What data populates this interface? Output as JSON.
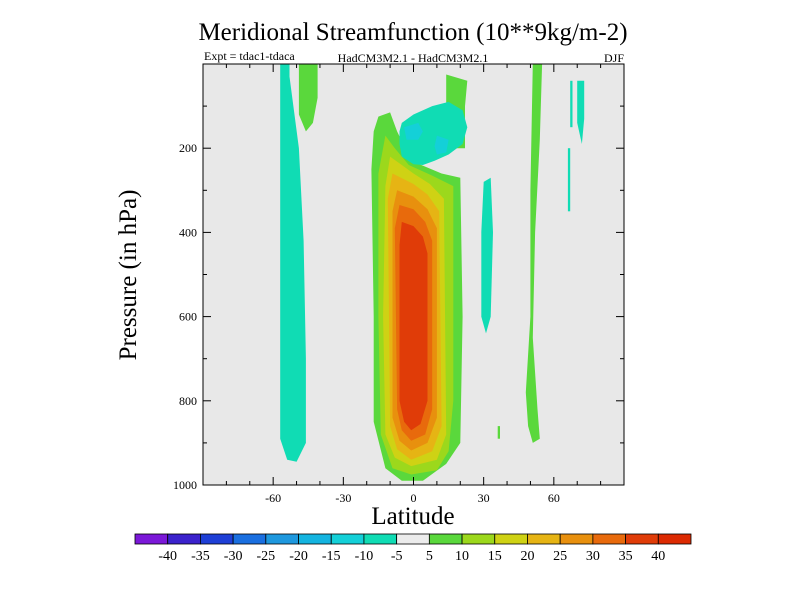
{
  "chart_data": {
    "type": "contour",
    "title": "Meridional Streamfunction (10**9kg/m-2)",
    "subtitle_left": "Expt = tdac1-tdaca",
    "subtitle_center": "HadCM3M2.1 - HadCM3M2.1",
    "subtitle_right": "DJF",
    "xlabel": "Latitude",
    "ylabel": "Pressure (in hPa)",
    "xlim": [
      -90,
      90
    ],
    "ylim": [
      1000,
      0
    ],
    "xticks": [
      -60,
      -30,
      0,
      30,
      60
    ],
    "yticks": [
      200,
      400,
      600,
      800,
      1000
    ],
    "background_color": "#e8e8e8",
    "colorbar": {
      "levels": [
        -40,
        -35,
        -30,
        -25,
        -20,
        -15,
        -10,
        -5,
        5,
        10,
        15,
        20,
        25,
        30,
        35,
        40
      ],
      "colors": [
        "#7b18d8",
        "#3b22cc",
        "#1e3fd6",
        "#1a6fe0",
        "#1e98de",
        "#14b4e0",
        "#14d0d8",
        "#10dcb4",
        "#ececec",
        "#5ad83c",
        "#9cd81c",
        "#cfd214",
        "#e6b414",
        "#e8900e",
        "#e86a0c",
        "#e03c08",
        "#dc2a02"
      ]
    },
    "regions": [
      {
        "level": "-10 to -5",
        "polygon": [
          [
            -57,
            0
          ],
          [
            -53,
            0
          ],
          [
            -53,
            30
          ],
          [
            -49,
            200
          ],
          [
            -47,
            420
          ],
          [
            -46,
            700
          ],
          [
            -46,
            900
          ],
          [
            -50,
            945
          ],
          [
            -54,
            940
          ],
          [
            -57,
            890
          ],
          [
            -57,
            400
          ]
        ]
      },
      {
        "level": "5 to 10",
        "polygon": [
          [
            -49,
            0
          ],
          [
            -41,
            0
          ],
          [
            -41,
            80
          ],
          [
            -43,
            140
          ],
          [
            -46,
            160
          ],
          [
            -49,
            120
          ]
        ]
      },
      {
        "level": "5 to 10",
        "polygon": [
          [
            -15,
            125
          ],
          [
            -10,
            115
          ],
          [
            -7,
            160
          ],
          [
            -1,
            230
          ],
          [
            12,
            260
          ],
          [
            20,
            270
          ],
          [
            21,
            600
          ],
          [
            20,
            900
          ],
          [
            14,
            950
          ],
          [
            4,
            990
          ],
          [
            -5,
            990
          ],
          [
            -12,
            960
          ],
          [
            -17,
            850
          ],
          [
            -17,
            600
          ],
          [
            -18,
            250
          ],
          [
            -17,
            160
          ]
        ]
      },
      {
        "level": "10 to 15",
        "polygon": [
          [
            -12,
            170
          ],
          [
            -8,
            200
          ],
          [
            -2,
            240
          ],
          [
            8,
            265
          ],
          [
            17,
            290
          ],
          [
            17,
            800
          ],
          [
            15,
            920
          ],
          [
            10,
            965
          ],
          [
            -1,
            975
          ],
          [
            -9,
            960
          ],
          [
            -14,
            880
          ],
          [
            -15,
            600
          ],
          [
            -15,
            260
          ]
        ]
      },
      {
        "level": "15 to 20",
        "polygon": [
          [
            -10,
            220
          ],
          [
            -5,
            240
          ],
          [
            0,
            260
          ],
          [
            7,
            285
          ],
          [
            13,
            320
          ],
          [
            14,
            880
          ],
          [
            10,
            940
          ],
          [
            -1,
            955
          ],
          [
            -8,
            935
          ],
          [
            -12,
            880
          ],
          [
            -13,
            600
          ],
          [
            -12,
            290
          ]
        ]
      },
      {
        "level": "20 to 25",
        "polygon": [
          [
            -9,
            260
          ],
          [
            0,
            285
          ],
          [
            6,
            310
          ],
          [
            11,
            350
          ],
          [
            12,
            860
          ],
          [
            8,
            920
          ],
          [
            -1,
            940
          ],
          [
            -7,
            915
          ],
          [
            -10,
            860
          ],
          [
            -11,
            320
          ]
        ]
      },
      {
        "level": "25 to 30",
        "polygon": [
          [
            -7,
            300
          ],
          [
            0,
            315
          ],
          [
            6,
            345
          ],
          [
            10,
            390
          ],
          [
            10,
            840
          ],
          [
            6,
            900
          ],
          [
            -1,
            918
          ],
          [
            -6,
            895
          ],
          [
            -9,
            840
          ],
          [
            -9,
            350
          ]
        ]
      },
      {
        "level": "30 to 35",
        "polygon": [
          [
            -6,
            335
          ],
          [
            0,
            345
          ],
          [
            5,
            375
          ],
          [
            8,
            420
          ],
          [
            8,
            820
          ],
          [
            5,
            880
          ],
          [
            -1,
            895
          ],
          [
            -5,
            870
          ],
          [
            -7,
            820
          ],
          [
            -8,
            390
          ]
        ]
      },
      {
        "level": "35 to 40",
        "polygon": [
          [
            -5,
            375
          ],
          [
            0,
            385
          ],
          [
            4,
            410
          ],
          [
            6,
            450
          ],
          [
            6,
            800
          ],
          [
            3,
            855
          ],
          [
            -1,
            870
          ],
          [
            -4,
            850
          ],
          [
            -6,
            800
          ],
          [
            -6,
            430
          ]
        ]
      },
      {
        "level": "5 to 10",
        "polygon": [
          [
            14,
            25
          ],
          [
            23,
            40
          ],
          [
            22,
            100
          ],
          [
            22,
            200
          ],
          [
            14,
            200
          ],
          [
            14,
            120
          ]
        ]
      },
      {
        "level": "-10 to -5",
        "polygon": [
          [
            -5,
            140
          ],
          [
            0,
            120
          ],
          [
            8,
            100
          ],
          [
            15,
            90
          ],
          [
            21,
            110
          ],
          [
            23,
            150
          ],
          [
            21,
            190
          ],
          [
            15,
            215
          ],
          [
            9,
            230
          ],
          [
            4,
            240
          ],
          [
            0,
            238
          ],
          [
            -5,
            220
          ],
          [
            -6,
            190
          ],
          [
            -6,
            160
          ]
        ]
      },
      {
        "level": "-15 to -10",
        "polygon": [
          [
            -4,
            150
          ],
          [
            2,
            140
          ],
          [
            4,
            160
          ],
          [
            2,
            180
          ],
          [
            -3,
            180
          ]
        ]
      },
      {
        "level": "-15 to -10",
        "polygon": [
          [
            10,
            170
          ],
          [
            15,
            180
          ],
          [
            14,
            210
          ],
          [
            10,
            215
          ],
          [
            9,
            195
          ]
        ]
      },
      {
        "level": "-10 to -5",
        "polygon": [
          [
            30,
            280
          ],
          [
            33,
            270
          ],
          [
            34,
            400
          ],
          [
            33,
            600
          ],
          [
            31,
            640
          ],
          [
            29,
            600
          ],
          [
            29,
            400
          ]
        ]
      },
      {
        "level": "5 to 10",
        "polygon": [
          [
            51,
            0
          ],
          [
            55,
            0
          ],
          [
            54,
            180
          ],
          [
            52,
            400
          ],
          [
            51,
            650
          ],
          [
            53,
            820
          ],
          [
            54,
            890
          ],
          [
            51,
            900
          ],
          [
            49,
            860
          ],
          [
            48,
            780
          ],
          [
            50,
            600
          ],
          [
            50,
            300
          ]
        ]
      },
      {
        "level": "5 to 10",
        "polygon": [
          [
            36,
            860
          ],
          [
            37,
            860
          ],
          [
            37,
            890
          ],
          [
            36,
            890
          ]
        ]
      },
      {
        "level": "-10 to -5",
        "polygon": [
          [
            67,
            40
          ],
          [
            68,
            40
          ],
          [
            68,
            150
          ],
          [
            67,
            150
          ]
        ]
      },
      {
        "level": "-10 to -5",
        "polygon": [
          [
            70,
            40
          ],
          [
            73,
            40
          ],
          [
            73,
            130
          ],
          [
            72,
            190
          ],
          [
            70,
            140
          ]
        ]
      },
      {
        "level": "-10 to -5",
        "polygon": [
          [
            66,
            200
          ],
          [
            67,
            200
          ],
          [
            67,
            350
          ],
          [
            66,
            350
          ]
        ]
      }
    ]
  }
}
